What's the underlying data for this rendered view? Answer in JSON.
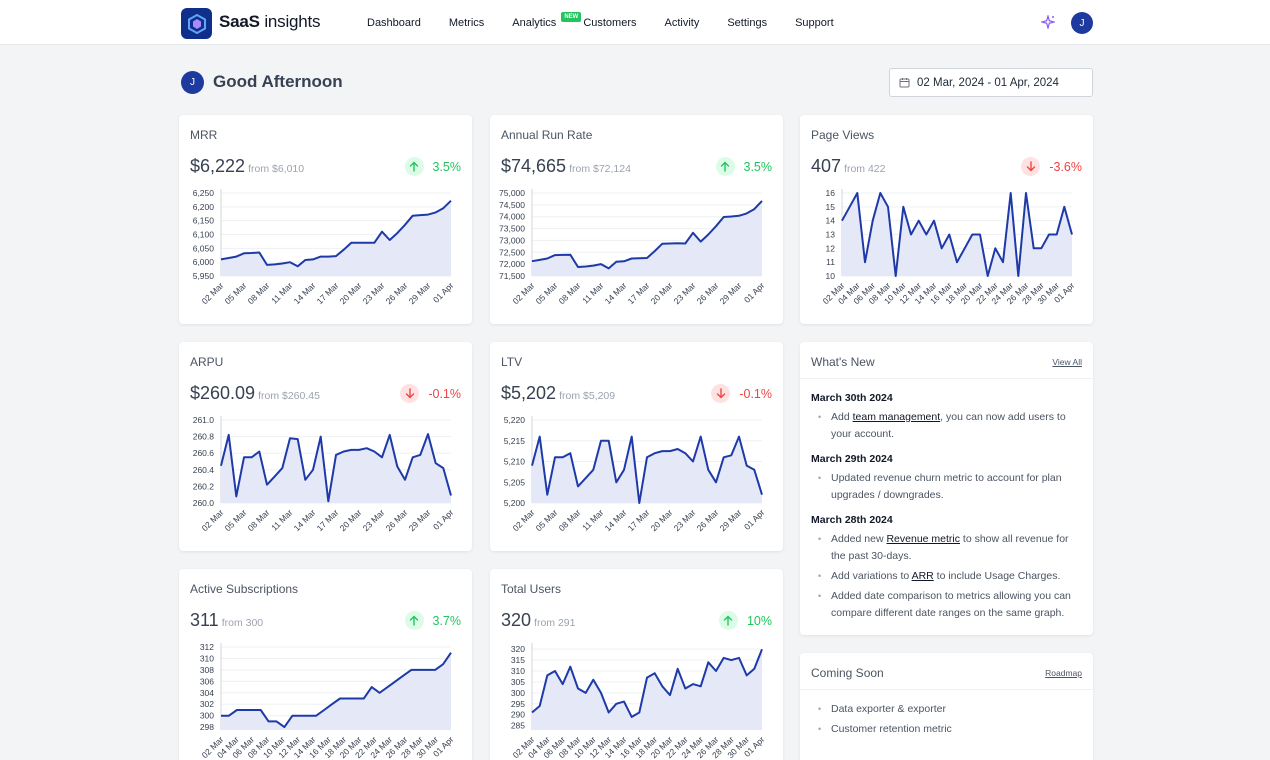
{
  "app": {
    "brand_bold": "SaaS",
    "brand_rest": " insights",
    "user_initial": "J"
  },
  "nav": [
    {
      "label": "Dashboard"
    },
    {
      "label": "Metrics"
    },
    {
      "label": "Analytics",
      "badge": "NEW"
    },
    {
      "label": "Customers"
    },
    {
      "label": "Activity"
    },
    {
      "label": "Settings"
    },
    {
      "label": "Support"
    }
  ],
  "greeting": "Good Afternoon",
  "date_range": "02 Mar, 2024 - 01 Apr, 2024",
  "colors": {
    "line": "#1e3aa8",
    "fill": "#e4e8f7",
    "up": "#22c55e",
    "down": "#ef4444"
  },
  "cards": [
    {
      "title": "MRR",
      "value": "$6,222",
      "from": "from $6,010",
      "change": "3.5%",
      "direction": "up"
    },
    {
      "title": "Annual Run Rate",
      "value": "$74,665",
      "from": "from $72,124",
      "change": "3.5%",
      "direction": "up"
    },
    {
      "title": "Page Views",
      "value": "407",
      "from": "from 422",
      "change": "-3.6%",
      "direction": "down"
    },
    {
      "title": "ARPU",
      "value": "$260.09",
      "from": "from $260.45",
      "change": "-0.1%",
      "direction": "down"
    },
    {
      "title": "LTV",
      "value": "$5,202",
      "from": "from $5,209",
      "change": "-0.1%",
      "direction": "down"
    },
    {
      "title": "Active Subscriptions",
      "value": "311",
      "from": "from 300",
      "change": "3.7%",
      "direction": "up"
    },
    {
      "title": "Total Users",
      "value": "320",
      "from": "from 291",
      "change": "10%",
      "direction": "up"
    }
  ],
  "chart_data": [
    {
      "type": "area",
      "title": "MRR",
      "yticks": [
        "5,950",
        "6,000",
        "6,050",
        "6,100",
        "6,150",
        "6,200",
        "6,250"
      ],
      "ylim": [
        5950,
        6250
      ],
      "xticks": [
        "02 Mar",
        "05 Mar",
        "08 Mar",
        "11 Mar",
        "14 Mar",
        "17 Mar",
        "20 Mar",
        "23 Mar",
        "26 Mar",
        "29 Mar",
        "01 Apr"
      ],
      "values": [
        6010,
        6015,
        6020,
        6032,
        6033,
        6035,
        5990,
        5992,
        5995,
        6000,
        5985,
        6008,
        6010,
        6020,
        6020,
        6022,
        6045,
        6070,
        6070,
        6070,
        6070,
        6110,
        6080,
        6105,
        6135,
        6168,
        6170,
        6172,
        6180,
        6195,
        6222
      ]
    },
    {
      "type": "area",
      "title": "Annual Run Rate",
      "yticks": [
        "71,500",
        "72,000",
        "72,500",
        "73,000",
        "73,500",
        "74,000",
        "74,500",
        "75,000"
      ],
      "ylim": [
        71500,
        75000
      ],
      "xticks": [
        "02 Mar",
        "05 Mar",
        "08 Mar",
        "11 Mar",
        "14 Mar",
        "17 Mar",
        "20 Mar",
        "23 Mar",
        "26 Mar",
        "29 Mar",
        "01 Apr"
      ],
      "values": [
        72124,
        72180,
        72240,
        72380,
        72390,
        72400,
        71880,
        71900,
        71940,
        72000,
        71820,
        72100,
        72120,
        72240,
        72250,
        72260,
        72550,
        72860,
        72870,
        72880,
        72870,
        73320,
        72950,
        73250,
        73600,
        73990,
        74010,
        74040,
        74140,
        74320,
        74665
      ]
    },
    {
      "type": "line",
      "title": "Page Views",
      "yticks": [
        "10",
        "11",
        "12",
        "13",
        "14",
        "15",
        "16"
      ],
      "ylim": [
        10,
        16
      ],
      "xticks": [
        "02 Mar",
        "04 Mar",
        "06 Mar",
        "08 Mar",
        "10 Mar",
        "12 Mar",
        "14 Mar",
        "16 Mar",
        "18 Mar",
        "20 Mar",
        "22 Mar",
        "24 Mar",
        "26 Mar",
        "28 Mar",
        "30 Mar",
        "01 Apr"
      ],
      "values": [
        14,
        15,
        16,
        11,
        14,
        16,
        15,
        10,
        15,
        13,
        14,
        13,
        14,
        12,
        13,
        11,
        12,
        13,
        13,
        10,
        12,
        11,
        16,
        10,
        16,
        12,
        12,
        13,
        13,
        15,
        13
      ]
    },
    {
      "type": "line",
      "title": "ARPU",
      "yticks": [
        "260.0",
        "260.2",
        "260.4",
        "260.6",
        "260.8",
        "261.0"
      ],
      "ylim": [
        260.0,
        261.0
      ],
      "xticks": [
        "02 Mar",
        "05 Mar",
        "08 Mar",
        "11 Mar",
        "14 Mar",
        "17 Mar",
        "20 Mar",
        "23 Mar",
        "26 Mar",
        "29 Mar",
        "01 Apr"
      ],
      "values": [
        260.45,
        260.82,
        260.08,
        260.55,
        260.55,
        260.62,
        260.22,
        260.32,
        260.42,
        260.78,
        260.77,
        260.28,
        260.4,
        260.8,
        260.02,
        260.58,
        260.62,
        260.64,
        260.64,
        260.66,
        260.62,
        260.55,
        260.82,
        260.44,
        260.28,
        260.55,
        260.58,
        260.83,
        260.48,
        260.42,
        260.09
      ]
    },
    {
      "type": "line",
      "title": "LTV",
      "yticks": [
        "5,200",
        "5,205",
        "5,210",
        "5,215",
        "5,220"
      ],
      "ylim": [
        5200,
        5220
      ],
      "xticks": [
        "02 Mar",
        "05 Mar",
        "08 Mar",
        "11 Mar",
        "14 Mar",
        "17 Mar",
        "20 Mar",
        "23 Mar",
        "26 Mar",
        "29 Mar",
        "01 Apr"
      ],
      "values": [
        5209,
        5216,
        5202,
        5211,
        5211,
        5212,
        5204,
        5206,
        5208,
        5215,
        5215,
        5205,
        5208,
        5216,
        5200,
        5211,
        5212,
        5212.5,
        5212.5,
        5213,
        5212,
        5210,
        5216,
        5208,
        5205,
        5211,
        5211.5,
        5216,
        5209,
        5208,
        5202
      ]
    },
    {
      "type": "area",
      "title": "Active Subscriptions",
      "yticks": [
        "298",
        "300",
        "302",
        "304",
        "306",
        "308",
        "310",
        "312"
      ],
      "ylim": [
        297.5,
        312
      ],
      "xticks": [
        "02 Mar",
        "04 Mar",
        "06 Mar",
        "08 Mar",
        "10 Mar",
        "12 Mar",
        "14 Mar",
        "16 Mar",
        "18 Mar",
        "20 Mar",
        "22 Mar",
        "24 Mar",
        "26 Mar",
        "28 Mar",
        "30 Mar",
        "01 Apr"
      ],
      "values": [
        300,
        300,
        301,
        301,
        301,
        301,
        299,
        299,
        298,
        300,
        300,
        300,
        300,
        301,
        302,
        303,
        303,
        303,
        303,
        305,
        304,
        305,
        306,
        307,
        308,
        308,
        308,
        308,
        309,
        311
      ]
    },
    {
      "type": "area",
      "title": "Total Users",
      "yticks": [
        "285",
        "290",
        "295",
        "300",
        "305",
        "310",
        "315",
        "320"
      ],
      "ylim": [
        283,
        321
      ],
      "xticks": [
        "02 Mar",
        "04 Mar",
        "06 Mar",
        "08 Mar",
        "10 Mar",
        "12 Mar",
        "14 Mar",
        "16 Mar",
        "18 Mar",
        "20 Mar",
        "22 Mar",
        "24 Mar",
        "26 Mar",
        "28 Mar",
        "30 Mar",
        "01 Apr"
      ],
      "values": [
        291,
        294,
        308,
        310,
        304,
        312,
        302,
        300,
        306,
        300,
        291,
        295,
        296,
        289,
        291,
        307,
        309,
        303,
        299,
        311,
        302,
        304,
        303,
        314,
        310,
        316,
        315,
        316,
        308,
        311,
        320
      ]
    }
  ],
  "whats_new": {
    "title": "What's New",
    "link": "View All",
    "groups": [
      {
        "date": "March 30th 2024",
        "items": [
          {
            "pre": "Add ",
            "link": "team management",
            "post": ", you can now add users to your account."
          }
        ]
      },
      {
        "date": "March 29th 2024",
        "items": [
          {
            "pre": "Updated revenue churn metric to account for plan upgrades / downgrades.",
            "link": "",
            "post": ""
          }
        ]
      },
      {
        "date": "March 28th 2024",
        "items": [
          {
            "pre": "Added new ",
            "link": "Revenue metric",
            "post": " to show all revenue for the past 30-days."
          },
          {
            "pre": "Add variations to ",
            "link": "ARR",
            "post": " to include Usage Charges."
          },
          {
            "pre": "Added date comparison to metrics allowing you can compare different date ranges on the same graph.",
            "link": "",
            "post": ""
          }
        ]
      }
    ]
  },
  "coming_soon": {
    "title": "Coming Soon",
    "link": "Roadmap",
    "items": [
      "Data exporter & exporter",
      "Customer retention metric"
    ]
  }
}
